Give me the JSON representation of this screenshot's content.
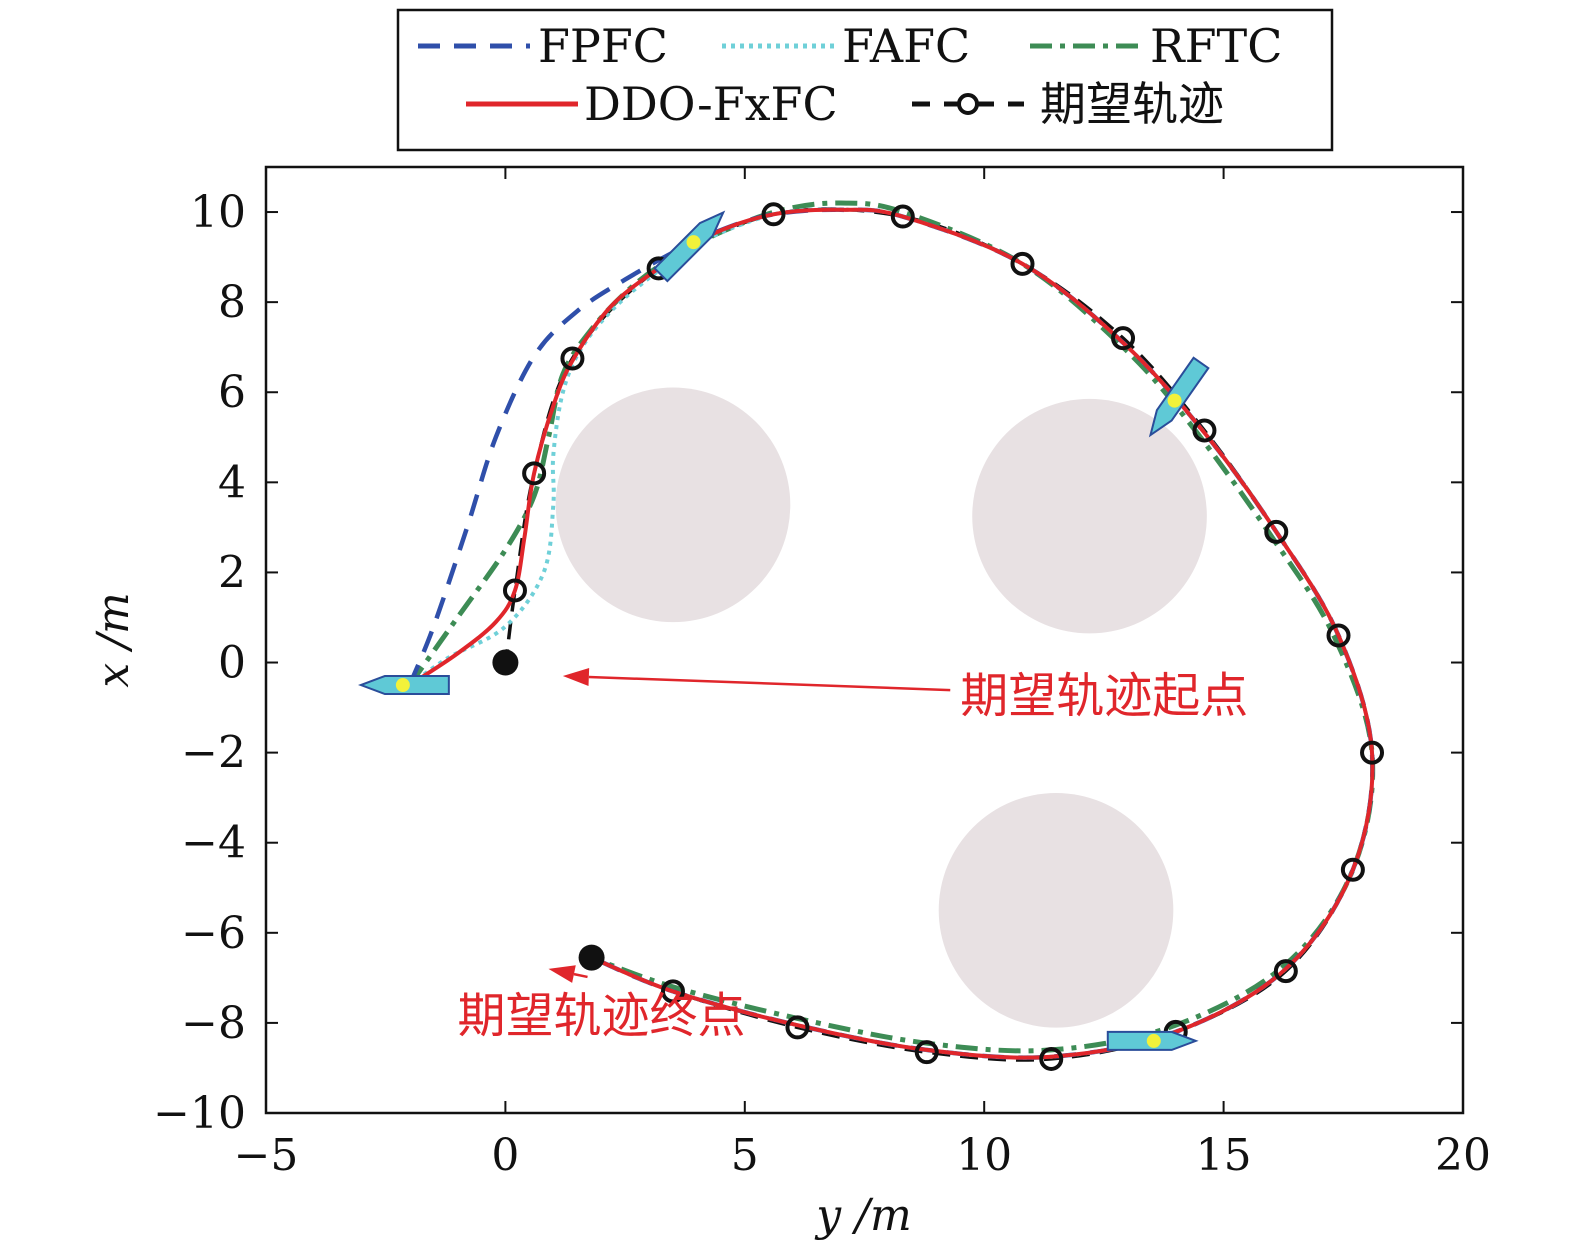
{
  "chart_data": {
    "type": "line",
    "xlabel": "y /m",
    "ylabel": "x /m",
    "xlim": [
      -5,
      20
    ],
    "ylim": [
      -10,
      11
    ],
    "xticks": [
      "−5",
      "0",
      "5",
      "10",
      "15",
      "20"
    ],
    "yticks": [
      "10",
      "8",
      "6",
      "4",
      "2",
      "0",
      "−2",
      "−4",
      "−6",
      "−8",
      "−10"
    ],
    "grid": false,
    "legend": {
      "position": "top",
      "columns": 3
    },
    "obstacles": [
      {
        "center": [
          3.5,
          3.5
        ],
        "radius": 2.45
      },
      {
        "center": [
          12.2,
          3.25
        ],
        "radius": 2.45
      },
      {
        "center": [
          11.5,
          -5.5
        ],
        "radius": 2.45
      }
    ],
    "series": [
      {
        "name": "FPFC",
        "color": "#2f4faa",
        "style": "dashed",
        "points": [
          [
            -2.0,
            -0.5
          ],
          [
            -1.5,
            0.8
          ],
          [
            -0.8,
            3.0
          ],
          [
            -0.2,
            5.0
          ],
          [
            0.6,
            6.8
          ],
          [
            1.5,
            7.8
          ],
          [
            2.5,
            8.5
          ],
          [
            3.5,
            9.1
          ],
          [
            4.5,
            9.6
          ],
          [
            5.6,
            9.95
          ],
          [
            7.0,
            10.05
          ],
          [
            8.3,
            9.9
          ],
          [
            10.8,
            8.85
          ],
          [
            12.9,
            7.1
          ],
          [
            14.6,
            5.1
          ],
          [
            16.1,
            2.9
          ],
          [
            17.4,
            0.6
          ],
          [
            18.1,
            -2.0
          ],
          [
            17.7,
            -4.6
          ],
          [
            16.3,
            -6.8
          ],
          [
            14.0,
            -8.2
          ],
          [
            11.4,
            -8.75
          ],
          [
            8.8,
            -8.6
          ],
          [
            6.1,
            -8.05
          ],
          [
            3.5,
            -7.3
          ],
          [
            1.8,
            -6.55
          ]
        ]
      },
      {
        "name": "FAFC",
        "color": "#6fd0d8",
        "style": "dotted",
        "points": [
          [
            -2.0,
            -0.5
          ],
          [
            -1.2,
            0.1
          ],
          [
            0.0,
            0.8
          ],
          [
            0.8,
            2.0
          ],
          [
            1.0,
            3.5
          ],
          [
            1.0,
            4.6
          ],
          [
            1.2,
            6.0
          ],
          [
            1.6,
            7.0
          ],
          [
            2.3,
            7.9
          ],
          [
            3.2,
            8.7
          ],
          [
            4.0,
            9.3
          ],
          [
            5.6,
            9.95
          ],
          [
            7.0,
            10.05
          ],
          [
            8.3,
            9.9
          ],
          [
            10.8,
            8.85
          ],
          [
            12.9,
            7.1
          ],
          [
            14.6,
            5.1
          ],
          [
            16.1,
            2.9
          ],
          [
            17.4,
            0.6
          ],
          [
            18.1,
            -2.0
          ],
          [
            17.7,
            -4.6
          ],
          [
            16.3,
            -6.8
          ],
          [
            14.0,
            -8.2
          ],
          [
            11.4,
            -8.75
          ],
          [
            8.8,
            -8.6
          ],
          [
            6.1,
            -8.05
          ],
          [
            3.5,
            -7.3
          ],
          [
            1.8,
            -6.55
          ]
        ]
      },
      {
        "name": "RFTC",
        "color": "#3d8c55",
        "style": "dashdot",
        "points": [
          [
            -2.0,
            -0.5
          ],
          [
            -1.0,
            1.0
          ],
          [
            0.0,
            2.5
          ],
          [
            0.6,
            3.7
          ],
          [
            0.9,
            5.0
          ],
          [
            1.2,
            6.4
          ],
          [
            1.8,
            7.4
          ],
          [
            2.6,
            8.3
          ],
          [
            3.5,
            9.0
          ],
          [
            4.6,
            9.6
          ],
          [
            5.8,
            10.05
          ],
          [
            7.0,
            10.2
          ],
          [
            8.3,
            10.0
          ],
          [
            10.8,
            8.85
          ],
          [
            12.9,
            7.0
          ],
          [
            14.3,
            5.3
          ],
          [
            16.0,
            2.8
          ],
          [
            17.3,
            0.6
          ],
          [
            18.1,
            -2.0
          ],
          [
            17.7,
            -4.6
          ],
          [
            16.3,
            -6.7
          ],
          [
            14.0,
            -8.05
          ],
          [
            11.4,
            -8.6
          ],
          [
            8.8,
            -8.45
          ],
          [
            6.1,
            -7.9
          ],
          [
            3.5,
            -7.2
          ],
          [
            1.8,
            -6.55
          ]
        ]
      },
      {
        "name": "DDO-FxFC",
        "color": "#e0262b",
        "style": "solid",
        "points": [
          [
            -2.0,
            -0.5
          ],
          [
            -1.0,
            0.2
          ],
          [
            -0.2,
            0.9
          ],
          [
            0.2,
            1.6
          ],
          [
            0.4,
            2.8
          ],
          [
            0.6,
            4.2
          ],
          [
            1.0,
            5.7
          ],
          [
            1.4,
            6.7
          ],
          [
            2.2,
            7.9
          ],
          [
            3.2,
            8.75
          ],
          [
            4.3,
            9.5
          ],
          [
            5.6,
            9.95
          ],
          [
            7.0,
            10.05
          ],
          [
            8.3,
            9.9
          ],
          [
            10.8,
            8.85
          ],
          [
            12.9,
            7.1
          ],
          [
            14.6,
            5.1
          ],
          [
            16.1,
            2.9
          ],
          [
            17.4,
            0.6
          ],
          [
            18.1,
            -2.0
          ],
          [
            17.7,
            -4.6
          ],
          [
            16.3,
            -6.8
          ],
          [
            14.0,
            -8.2
          ],
          [
            11.4,
            -8.75
          ],
          [
            8.8,
            -8.6
          ],
          [
            6.1,
            -8.05
          ],
          [
            3.5,
            -7.3
          ],
          [
            1.8,
            -6.55
          ]
        ]
      },
      {
        "name": "期望轨迹",
        "color": "#111111",
        "style": "dashed-circle",
        "points": [
          [
            0.0,
            -0.1
          ],
          [
            0.2,
            1.6
          ],
          [
            0.6,
            4.2
          ],
          [
            1.4,
            6.75
          ],
          [
            3.2,
            8.75
          ],
          [
            5.6,
            9.95
          ],
          [
            8.3,
            9.9
          ],
          [
            10.8,
            8.85
          ],
          [
            12.9,
            7.2
          ],
          [
            14.6,
            5.15
          ],
          [
            16.1,
            2.9
          ],
          [
            17.4,
            0.6
          ],
          [
            18.1,
            -2.0
          ],
          [
            17.7,
            -4.6
          ],
          [
            16.3,
            -6.85
          ],
          [
            14.0,
            -8.2
          ],
          [
            11.4,
            -8.8
          ],
          [
            8.8,
            -8.65
          ],
          [
            6.1,
            -8.1
          ],
          [
            3.5,
            -7.3
          ],
          [
            1.8,
            -6.55
          ]
        ],
        "markers": [
          [
            0.2,
            1.6
          ],
          [
            0.6,
            4.2
          ],
          [
            1.4,
            6.75
          ],
          [
            3.2,
            8.75
          ],
          [
            5.6,
            9.95
          ],
          [
            8.3,
            9.9
          ],
          [
            10.8,
            8.85
          ],
          [
            12.9,
            7.2
          ],
          [
            14.6,
            5.15
          ],
          [
            16.1,
            2.9
          ],
          [
            17.4,
            0.6
          ],
          [
            18.1,
            -2.0
          ],
          [
            17.7,
            -4.6
          ],
          [
            16.3,
            -6.85
          ],
          [
            14.0,
            -8.2
          ],
          [
            11.4,
            -8.8
          ],
          [
            8.8,
            -8.65
          ],
          [
            6.1,
            -8.1
          ],
          [
            3.5,
            -7.3
          ]
        ]
      }
    ],
    "start_point": [
      0.0,
      0.0
    ],
    "end_point": [
      1.8,
      -6.55
    ],
    "vessels": [
      {
        "pos": [
          -2.1,
          -0.5
        ],
        "heading": 180
      },
      {
        "pos": [
          3.9,
          9.3
        ],
        "heading": 45
      },
      {
        "pos": [
          14.0,
          5.85
        ],
        "heading": 235
      },
      {
        "pos": [
          13.5,
          -8.4
        ],
        "heading": 0
      }
    ],
    "annotations": [
      {
        "text": "期望轨迹起点",
        "arrow_to": [
          1.2,
          -0.3
        ],
        "text_anchor": [
          9.5,
          -1.1
        ]
      },
      {
        "text": "期望轨迹终点",
        "arrow_to": [
          0.9,
          -6.8
        ],
        "text_anchor": [
          -1.0,
          -8.2
        ]
      }
    ]
  }
}
